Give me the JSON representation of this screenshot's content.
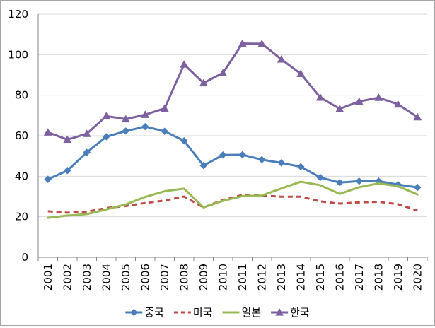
{
  "chart_data": {
    "type": "line",
    "title": "",
    "xlabel": "",
    "ylabel": "",
    "x": [
      "2001",
      "2002",
      "2003",
      "2004",
      "2005",
      "2006",
      "2007",
      "2008",
      "2009",
      "2010",
      "2011",
      "2012",
      "2013",
      "2014",
      "2015",
      "2016",
      "2017",
      "2018",
      "2019",
      "2020"
    ],
    "ylim": [
      0,
      120
    ],
    "yticks": [
      0,
      20,
      40,
      60,
      80,
      100,
      120
    ],
    "grid": "horizontal",
    "legend_position": "bottom",
    "series": [
      {
        "name": "중국",
        "color": "#4a7ebb",
        "dash": "solid",
        "marker": "diamond",
        "values": [
          38.5,
          42.8,
          51.8,
          59.5,
          62.3,
          64.5,
          62.2,
          57.5,
          45.3,
          50.5,
          50.6,
          48.2,
          46.6,
          44.7,
          39.4,
          36.9,
          37.6,
          37.6,
          35.9,
          34.5
        ]
      },
      {
        "name": "미국",
        "color": "#be4b48",
        "dash": "dashed",
        "marker": "none",
        "values": [
          22.7,
          22.0,
          22.5,
          24.3,
          25.3,
          26.8,
          28.0,
          30.0,
          24.6,
          28.3,
          30.8,
          30.6,
          29.9,
          29.9,
          27.6,
          26.5,
          27.1,
          27.4,
          26.2,
          23.1
        ]
      },
      {
        "name": "일본",
        "color": "#98b954",
        "dash": "solid",
        "marker": "none",
        "values": [
          19.5,
          20.6,
          21.3,
          23.6,
          26.1,
          29.8,
          32.6,
          33.9,
          24.6,
          27.9,
          30.2,
          30.5,
          34.0,
          37.3,
          35.6,
          31.3,
          34.6,
          36.5,
          35.1,
          31.0
        ]
      },
      {
        "name": "한국",
        "color": "#7d60a0",
        "dash": "solid",
        "marker": "triangle",
        "values": [
          61.7,
          58.1,
          61.0,
          69.7,
          68.2,
          70.4,
          73.5,
          95.2,
          86.0,
          91.0,
          105.5,
          105.4,
          97.7,
          90.6,
          78.9,
          73.3,
          76.9,
          78.8,
          75.5,
          69.2
        ]
      }
    ]
  }
}
